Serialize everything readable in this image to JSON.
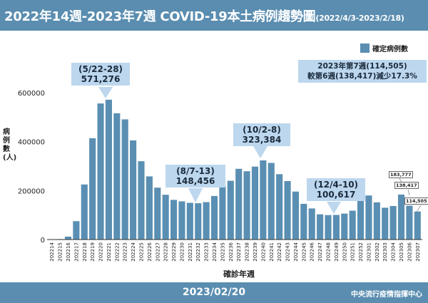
{
  "header": {
    "title": "2022年14週-2023年7週 COVID-19本土病例趨勢圖",
    "subtitle": "(2022/4/3-2023/2/18)"
  },
  "footer": {
    "date": "2023/02/20",
    "org": "中央流行疫情指揮中心"
  },
  "chart_data": {
    "type": "bar",
    "title": "2022年14週-2023年7週 COVID-19本土病例趨勢圖",
    "xlabel": "確診年週",
    "ylabel": "病例數(人)",
    "ylim": [
      0,
      600000
    ],
    "yticks": [
      "0",
      "200000",
      "400000",
      "600000"
    ],
    "grid": false,
    "legend_position": "top-right",
    "bar_color": "#5a8fb3",
    "categories": [
      "202214",
      "202215",
      "202216",
      "202217",
      "202218",
      "202219",
      "202220",
      "202221",
      "202222",
      "202223",
      "202224",
      "202225",
      "202226",
      "202227",
      "202228",
      "202229",
      "202230",
      "202231",
      "202232",
      "202233",
      "202234",
      "202235",
      "202236",
      "202237",
      "202238",
      "202239",
      "202240",
      "202241",
      "202242",
      "202243",
      "202244",
      "202245",
      "202246",
      "202247",
      "202248",
      "202249",
      "202250",
      "202251",
      "202252",
      "202301",
      "202302",
      "202303",
      "202304",
      "202305",
      "202306",
      "202307"
    ],
    "series": [
      {
        "name": "確定病例數",
        "values": [
          500,
          2000,
          12000,
          75000,
          225000,
          414000,
          556000,
          571276,
          516000,
          491000,
          405000,
          320000,
          258000,
          212000,
          183000,
          162000,
          156000,
          150000,
          148456,
          153000,
          178000,
          220000,
          240000,
          289000,
          279000,
          298000,
          323384,
          313000,
          267000,
          239000,
          196000,
          146000,
          127000,
          103000,
          100000,
          100617,
          106000,
          118000,
          171000,
          180000,
          152000,
          130000,
          137000,
          183777,
          138417,
          114505
        ]
      }
    ],
    "annotations": {
      "peak1": {
        "period": "(5/22-28)",
        "value": "571,276"
      },
      "trough1": {
        "period": "(8/7-13)",
        "value": "148,456"
      },
      "peak2": {
        "period": "(10/2-8)",
        "value": "323,384"
      },
      "trough2": {
        "period": "(12/4-10)",
        "value": "100,617"
      },
      "summary": {
        "line1": "2023年第7週(114,505)",
        "line2": "較第6週(138,417)減少17.3%"
      },
      "w05": "183,777",
      "w06": "138,417",
      "w07": "114,505"
    }
  }
}
